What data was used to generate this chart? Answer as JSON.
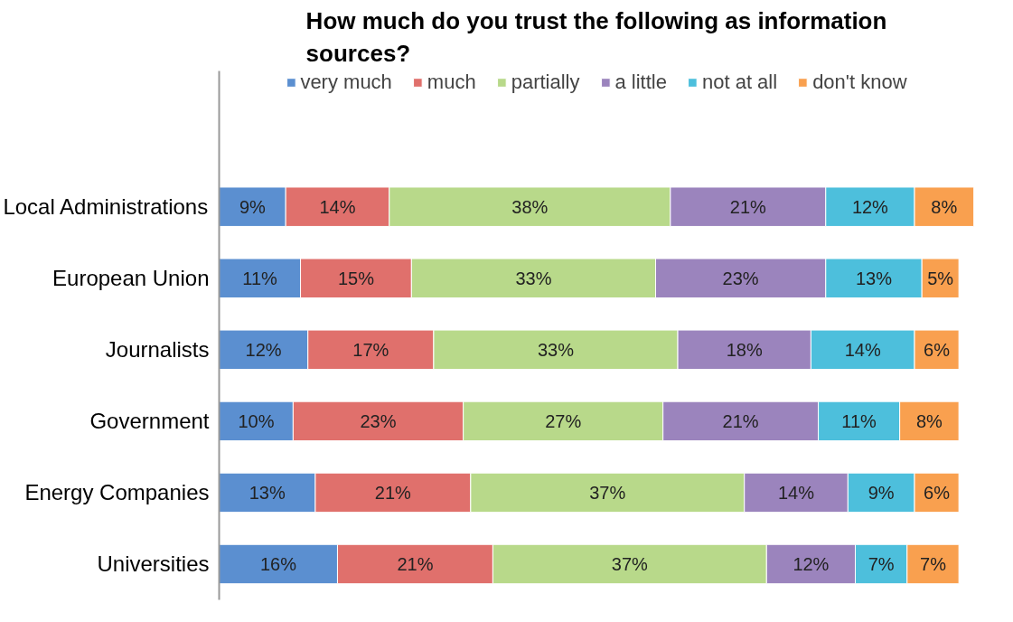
{
  "chart_data": {
    "type": "bar",
    "orientation": "horizontal",
    "stacked": true,
    "title": "How much do you trust the following as information sources?",
    "legend": "top",
    "grid": false,
    "categories": [
      "Local Administrations",
      "European Union",
      "Journalists",
      "Government",
      "Energy Companies",
      "Universities"
    ],
    "series": [
      {
        "name": "very much",
        "color": "#5b8fd0",
        "values": [
          9,
          11,
          12,
          10,
          13,
          16
        ],
        "value_labels": [
          "9%",
          "11%",
          "12%",
          "10%",
          "13%",
          "16%"
        ]
      },
      {
        "name": "much",
        "color": "#e0706c",
        "values": [
          14,
          15,
          17,
          23,
          21,
          21
        ],
        "value_labels": [
          "14%",
          "15%",
          "17%",
          "23%",
          "21%",
          "21%"
        ]
      },
      {
        "name": "partially",
        "color": "#b8d98a",
        "values": [
          38,
          33,
          33,
          27,
          37,
          37
        ],
        "value_labels": [
          "38%",
          "33%",
          "33%",
          "27%",
          "37%",
          "37%"
        ]
      },
      {
        "name": "a little",
        "color": "#9b84bd",
        "values": [
          21,
          23,
          18,
          21,
          14,
          12
        ],
        "value_labels": [
          "21%",
          "23%",
          "18%",
          "21%",
          "14%",
          "12%"
        ]
      },
      {
        "name": "not at all",
        "color": "#4dbfdc",
        "values": [
          12,
          13,
          14,
          11,
          9,
          7
        ],
        "value_labels": [
          "12%",
          "13%",
          "14%",
          "11%",
          "9%",
          "7%"
        ]
      },
      {
        "name": "don't know",
        "color": "#f9a04f",
        "values": [
          8,
          5,
          6,
          8,
          6,
          7
        ],
        "value_labels": [
          "8%",
          "5%",
          "6%",
          "8%",
          "6%",
          "7%"
        ]
      }
    ]
  }
}
